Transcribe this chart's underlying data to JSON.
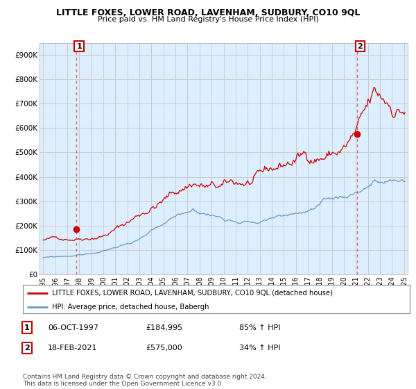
{
  "title": "LITTLE FOXES, LOWER ROAD, LAVENHAM, SUDBURY, CO10 9QL",
  "subtitle": "Price paid vs. HM Land Registry's House Price Index (HPI)",
  "legend_red": "LITTLE FOXES, LOWER ROAD, LAVENHAM, SUDBURY, CO10 9QL (detached house)",
  "legend_blue": "HPI: Average price, detached house, Babergh",
  "annotation1_label": "1",
  "annotation1_date": "06-OCT-1997",
  "annotation1_price": "£184,995",
  "annotation1_hpi": "85% ↑ HPI",
  "annotation2_label": "2",
  "annotation2_date": "18-FEB-2021",
  "annotation2_price": "£575,000",
  "annotation2_hpi": "34% ↑ HPI",
  "footer": "Contains HM Land Registry data © Crown copyright and database right 2024.\nThis data is licensed under the Open Government Licence v3.0.",
  "ylim": [
    0,
    950000
  ],
  "yticks": [
    0,
    100000,
    200000,
    300000,
    400000,
    500000,
    600000,
    700000,
    800000,
    900000
  ],
  "ytick_labels": [
    "£0",
    "£100K",
    "£200K",
    "£300K",
    "£400K",
    "£500K",
    "£600K",
    "£700K",
    "£800K",
    "£900K"
  ],
  "xlim_start": 1994.7,
  "xlim_end": 2025.3,
  "xtick_years": [
    1995,
    1996,
    1997,
    1998,
    1999,
    2000,
    2001,
    2002,
    2003,
    2004,
    2005,
    2006,
    2007,
    2008,
    2009,
    2010,
    2011,
    2012,
    2013,
    2014,
    2015,
    2016,
    2017,
    2018,
    2019,
    2020,
    2021,
    2022,
    2023,
    2024,
    2025
  ],
  "red_color": "#cc0000",
  "blue_color": "#6699cc",
  "dot_color": "#cc0000",
  "vline_color": "#dd4444",
  "grid_color": "#cccccc",
  "bg_color": "#ffffff",
  "chart_bg": "#ddeeff",
  "purchase1_x": 1997.77,
  "purchase1_y": 184995,
  "purchase2_x": 2021.12,
  "purchase2_y": 575000
}
